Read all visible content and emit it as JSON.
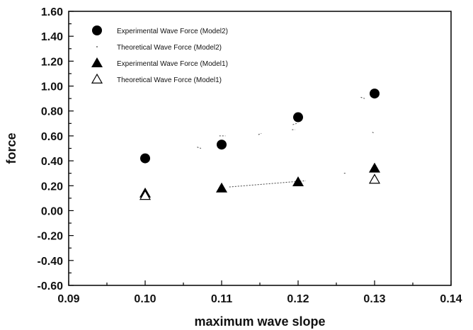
{
  "chart_data": {
    "type": "scatter",
    "title": "",
    "xlabel": "maximum wave slope",
    "ylabel": "force",
    "xlim": [
      0.09,
      0.14
    ],
    "ylim": [
      -0.6,
      1.6
    ],
    "x_ticks": [
      "0.09",
      "0.10",
      "0.11",
      "0.12",
      "0.13",
      "0.14"
    ],
    "y_ticks": [
      "-0.60",
      "-0.40",
      "-0.20",
      "0.00",
      "0.20",
      "0.40",
      "0.60",
      "0.80",
      "1.00",
      "1.20",
      "1.40",
      "1.60"
    ],
    "grid": false,
    "legend_position": "top-left",
    "series": [
      {
        "name": "Experimental Wave Force (Model2)",
        "marker": "filled-circle",
        "color": "#000000",
        "points": [
          [
            0.1,
            0.42
          ],
          [
            0.11,
            0.53
          ],
          [
            0.12,
            0.75
          ],
          [
            0.13,
            0.94
          ]
        ]
      },
      {
        "name": "Theoretical Wave Force (Model2)",
        "marker": "dot",
        "color": "#000000",
        "points": []
      },
      {
        "name": "Experimental Wave Force (Model1)",
        "marker": "filled-triangle",
        "color": "#000000",
        "points": [
          [
            0.1,
            0.14
          ],
          [
            0.11,
            0.18
          ],
          [
            0.12,
            0.23
          ],
          [
            0.13,
            0.34
          ]
        ]
      },
      {
        "name": "Theoretical Wave Force (Model1)",
        "marker": "open-triangle",
        "color": "#000000",
        "points": [
          [
            0.1,
            0.12
          ],
          [
            0.13,
            0.25
          ]
        ]
      }
    ]
  }
}
